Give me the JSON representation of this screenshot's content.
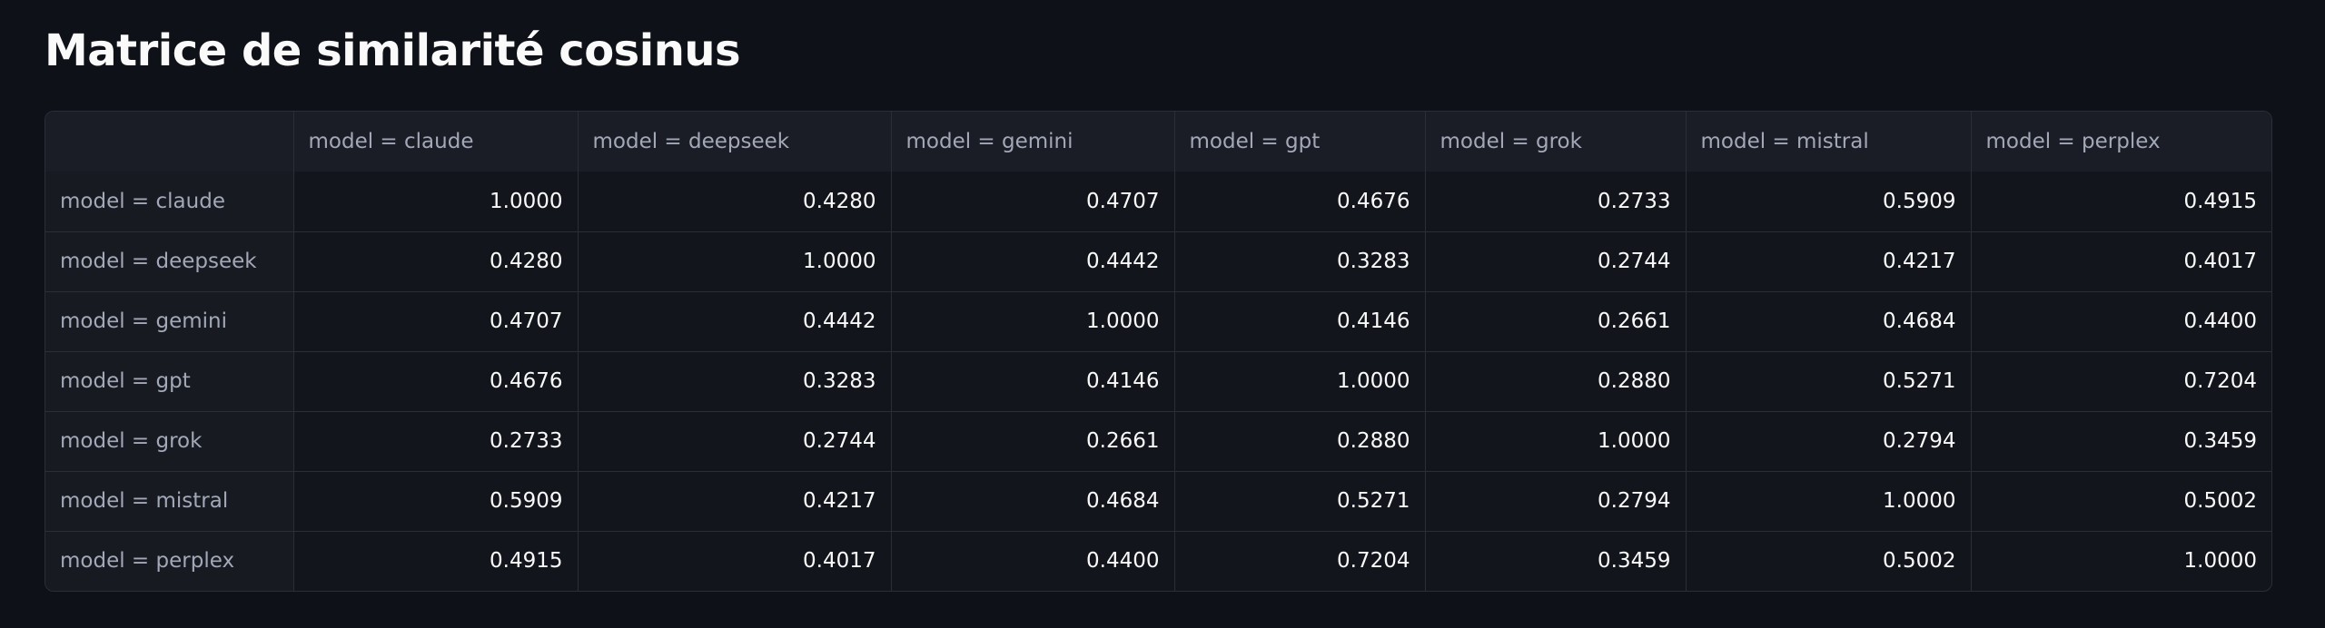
{
  "header": {
    "title": "Matrice de similarité cosinus"
  },
  "table": {
    "columns": [
      "model = claude",
      "model = deepseek",
      "model = gemini",
      "model = gpt",
      "model = grok",
      "model = mistral",
      "model = perplex"
    ],
    "rows": [
      {
        "label": "model = claude",
        "cells": [
          "1.0000",
          "0.4280",
          "0.4707",
          "0.4676",
          "0.2733",
          "0.5909",
          "0.4915"
        ]
      },
      {
        "label": "model = deepseek",
        "cells": [
          "0.4280",
          "1.0000",
          "0.4442",
          "0.3283",
          "0.2744",
          "0.4217",
          "0.4017"
        ]
      },
      {
        "label": "model = gemini",
        "cells": [
          "0.4707",
          "0.4442",
          "1.0000",
          "0.4146",
          "0.2661",
          "0.4684",
          "0.4400"
        ]
      },
      {
        "label": "model = gpt",
        "cells": [
          "0.4676",
          "0.3283",
          "0.4146",
          "1.0000",
          "0.2880",
          "0.5271",
          "0.7204"
        ]
      },
      {
        "label": "model = grok",
        "cells": [
          "0.2733",
          "0.2744",
          "0.2661",
          "0.2880",
          "1.0000",
          "0.2794",
          "0.3459"
        ]
      },
      {
        "label": "model = mistral",
        "cells": [
          "0.5909",
          "0.4217",
          "0.4684",
          "0.5271",
          "0.2794",
          "1.0000",
          "0.5002"
        ]
      },
      {
        "label": "model = perplex",
        "cells": [
          "0.4915",
          "0.4017",
          "0.4400",
          "0.7204",
          "0.3459",
          "0.5002",
          "1.0000"
        ]
      }
    ]
  }
}
